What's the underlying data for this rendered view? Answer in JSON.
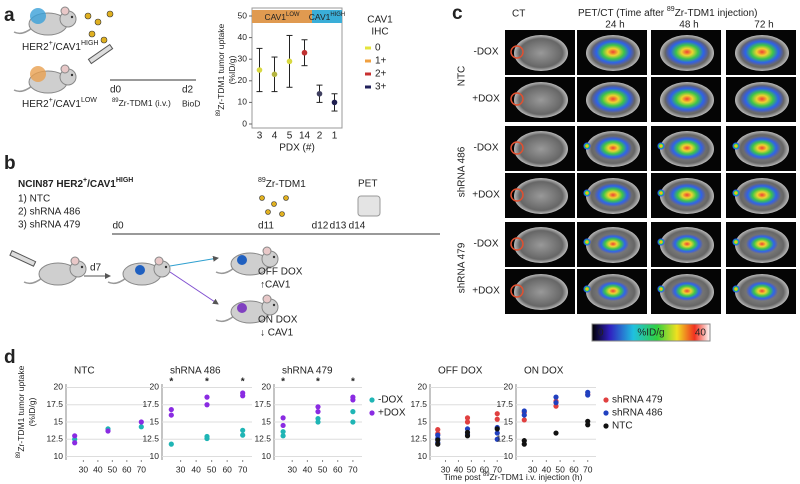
{
  "panel_labels": [
    "a",
    "b",
    "c",
    "d"
  ],
  "a": {
    "groups": [
      [
        {
          "t": "HER2"
        },
        {
          "sup": "+"
        },
        {
          "t": "/CAV1"
        },
        {
          "sup": "HIGH"
        }
      ],
      [
        {
          "t": "HER2"
        },
        {
          "sup": "+"
        },
        {
          "t": "/CAV1"
        },
        {
          "sup": "LOW"
        }
      ]
    ],
    "timeline": {
      "start": "d0",
      "end": "d2",
      "drug": [
        {
          "sup": "89"
        },
        {
          "t": "Zr-TDM1 (i.v.)"
        }
      ],
      "readout": "BioD"
    }
  },
  "b": {
    "title": [
      {
        "t": "NCIN87 HER2"
      },
      {
        "sup": "+"
      },
      {
        "t": "/CAV1"
      },
      {
        "sup": "HIGH"
      }
    ],
    "conditions": [
      "1) NTC",
      "2) shRNA 486",
      "3) shRNA 479"
    ],
    "timeline": {
      "days": [
        "d0",
        "d11",
        "d12",
        "d13",
        "d14"
      ],
      "drug": [
        {
          "sup": "89"
        },
        {
          "t": "Zr-TDM1"
        }
      ],
      "readout": "PET",
      "pretreat": "d7"
    },
    "arms": [
      {
        "label": "OFF DOX",
        "effect": "↑CAV1"
      },
      {
        "label": "ON DOX",
        "effect": "↓ CAV1"
      }
    ]
  },
  "c": {
    "headers": {
      "ct": "CT",
      "pet": [
        {
          "t": "PET/CT (Time after "
        },
        {
          "sup": "89"
        },
        {
          "t": "Zr-TDM1 injection)"
        }
      ]
    },
    "times": [
      "24 h",
      "48 h",
      "72 h"
    ],
    "groups": [
      {
        "name": "NTC",
        "rows": [
          "-DOX",
          "+DOX"
        ]
      },
      {
        "name": "shRNA 486",
        "rows": [
          "-DOX",
          "+DOX"
        ]
      },
      {
        "name": "shRNA 479",
        "rows": [
          "-DOX",
          "+DOX"
        ]
      }
    ],
    "colorbar": {
      "min": 0,
      "max": 40,
      "label": "%ID/g"
    }
  },
  "d": {
    "y_label": [
      [
        {
          "sup": "89"
        },
        {
          "t": "Zr-TDM1 tumor uptake"
        }
      ],
      [
        {
          "t": "(%ID/g)"
        }
      ]
    ],
    "x_label": [
      {
        "t": "Time post "
      },
      {
        "sup": "89"
      },
      {
        "t": "Zr-TDM1 i.v. injection (h)"
      }
    ]
  },
  "chart_data": [
    {
      "type": "errorbar",
      "categories": [
        "3",
        "4",
        "5",
        "14",
        "2",
        "1"
      ],
      "values": [
        25,
        23,
        29,
        33,
        14,
        10
      ],
      "errors": [
        10,
        8,
        12,
        6,
        4,
        4
      ],
      "colors": [
        "#d8d840",
        "#b4b440",
        "#d8d840",
        "#c03030",
        "#404060",
        "#202050"
      ],
      "ylim": [
        0,
        50
      ],
      "yticks": [
        0,
        10,
        20,
        30,
        40,
        50
      ],
      "y_label": [
        [
          {
            "sup": "89"
          },
          {
            "t": "Zr-TDM1 tumor uptake"
          }
        ],
        [
          {
            "t": "(%ID/g)"
          }
        ]
      ],
      "x_label": "PDX (#)",
      "header_groups": [
        {
          "label": [
            {
              "t": "CAV1"
            },
            {
              "sup": "LOW"
            }
          ],
          "color": "#e09a50",
          "size": 4
        },
        {
          "label": [
            {
              "t": "CAV1"
            },
            {
              "sup": "HIGH"
            }
          ],
          "color": "#3aaed8",
          "size": 2
        }
      ],
      "legend": {
        "title": [
          "CAV1",
          "IHC"
        ],
        "items": [
          {
            "name": "0",
            "color": "#e4e43c"
          },
          {
            "name": "1+",
            "color": "#f0a040"
          },
          {
            "name": "2+",
            "color": "#c83030"
          },
          {
            "name": "3+",
            "color": "#20205a"
          }
        ]
      }
    },
    {
      "type": "scatter",
      "title": "NTC",
      "xlim": [
        18,
        76
      ],
      "xticks": [
        30,
        40,
        50,
        60,
        70
      ],
      "ylim": [
        9.5,
        20.5
      ],
      "yticks": [
        10,
        12.5,
        15,
        17.5,
        20
      ],
      "grid": true,
      "series": [
        {
          "color": "#1fb5b5",
          "x": [
            24,
            47,
            70
          ],
          "values": [
            12.5,
            14,
            14.3
          ]
        },
        {
          "color": "#8a2be2",
          "x": [
            24,
            24,
            47,
            70
          ],
          "values": [
            12,
            13,
            13.7,
            15
          ]
        }
      ]
    },
    {
      "type": "scatter",
      "title": "shRNA 486",
      "xlim": [
        18,
        76
      ],
      "xticks": [
        30,
        40,
        50,
        60,
        70
      ],
      "ylim": [
        9.5,
        20.5
      ],
      "yticks": [
        10,
        12.5,
        15,
        17.5,
        20
      ],
      "grid": true,
      "series": [
        {
          "color": "#1fb5b5",
          "x": [
            24,
            47,
            47,
            70,
            70
          ],
          "values": [
            11.8,
            12.6,
            12.9,
            13.1,
            13.8
          ]
        },
        {
          "color": "#8a2be2",
          "x": [
            24,
            24,
            47,
            47,
            70,
            70
          ],
          "values": [
            16,
            16.8,
            17.5,
            18.6,
            18.8,
            19.2
          ]
        }
      ],
      "annotations": {
        "x": [
          24,
          47,
          70
        ],
        "text": [
          "*",
          "*",
          "*"
        ]
      }
    },
    {
      "type": "scatter",
      "title": "shRNA 479",
      "xlim": [
        18,
        76
      ],
      "xticks": [
        30,
        40,
        50,
        60,
        70
      ],
      "ylim": [
        9.5,
        20.5
      ],
      "yticks": [
        10,
        12.5,
        15,
        17.5,
        20
      ],
      "grid": true,
      "legend": "right",
      "series": [
        {
          "name": "-DOX",
          "color": "#1fb5b5",
          "x": [
            24,
            24,
            47,
            47,
            70,
            70
          ],
          "values": [
            13,
            13.6,
            15,
            15.5,
            15,
            16.5
          ]
        },
        {
          "name": "+DOX",
          "color": "#8a2be2",
          "x": [
            24,
            24,
            47,
            47,
            70,
            70
          ],
          "values": [
            14.5,
            15.6,
            16.5,
            17.2,
            18.2,
            18.6
          ]
        }
      ],
      "annotations": {
        "x": [
          24,
          47,
          70
        ],
        "text": [
          "*",
          "*",
          "*"
        ]
      }
    },
    {
      "type": "scatter",
      "title": "OFF DOX",
      "xlim": [
        18,
        76
      ],
      "xticks": [
        30,
        40,
        50,
        60,
        70
      ],
      "ylim": [
        9.5,
        20.5
      ],
      "yticks": [
        10,
        12.5,
        15,
        17.5,
        20
      ],
      "grid": true,
      "series": [
        {
          "color": "#e04040",
          "x": [
            24,
            24,
            47,
            47,
            70,
            70
          ],
          "values": [
            13.3,
            13.9,
            15,
            15.6,
            15.4,
            16.2
          ]
        },
        {
          "color": "#2040c0",
          "x": [
            24,
            24,
            24,
            47,
            47,
            70,
            70,
            70
          ],
          "values": [
            12,
            12.6,
            13.1,
            13.2,
            14,
            12.5,
            13.4,
            14.2
          ]
        },
        {
          "color": "#111111",
          "x": [
            24,
            24,
            47,
            47,
            70
          ],
          "values": [
            11.8,
            12.4,
            13,
            13.5,
            14
          ]
        }
      ]
    },
    {
      "type": "scatter",
      "title": "ON DOX",
      "xlim": [
        18,
        76
      ],
      "xticks": [
        30,
        40,
        50,
        60,
        70
      ],
      "ylim": [
        9.5,
        20.5
      ],
      "yticks": [
        10,
        12.5,
        15,
        17.5,
        20
      ],
      "grid": true,
      "legend": "right",
      "series": [
        {
          "name": "shRNA 479",
          "color": "#e04040",
          "x": [
            24,
            24,
            47,
            47,
            70
          ],
          "values": [
            15.3,
            16.4,
            17.3,
            18,
            19
          ]
        },
        {
          "name": "shRNA 486",
          "color": "#2040c0",
          "x": [
            24,
            24,
            47,
            47,
            70,
            70
          ],
          "values": [
            16,
            16.6,
            17.8,
            18.6,
            18.9,
            19.3
          ]
        },
        {
          "name": "NTC",
          "color": "#111111",
          "x": [
            24,
            24,
            47,
            70,
            70
          ],
          "values": [
            11.8,
            12.3,
            13.4,
            14.6,
            15.1
          ]
        }
      ]
    }
  ]
}
